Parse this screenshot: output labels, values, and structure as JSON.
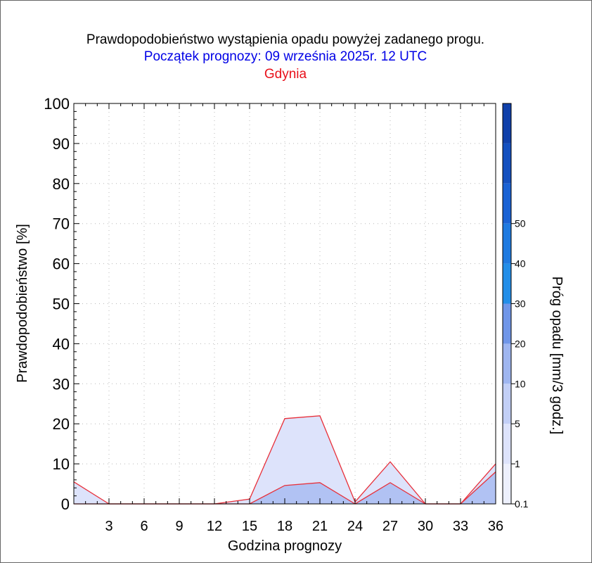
{
  "chart_data": {
    "type": "area",
    "title": "Prawdopodobieństwo wystąpienia opadu powyżej zadanego progu.",
    "subtitle": "Początek prognozy: 09 września 2025r. 12 UTC",
    "location": "Gdynia",
    "xlabel": "Godzina prognozy",
    "ylabel": "Prawdopodobieństwo [%]",
    "colorbar_label": "Próg opadu [mm/3 godz.]",
    "xlim": [
      0,
      36
    ],
    "ylim": [
      0,
      100
    ],
    "x_ticks": [
      3,
      6,
      9,
      12,
      15,
      18,
      21,
      24,
      27,
      30,
      33,
      36
    ],
    "y_ticks": [
      0,
      10,
      20,
      30,
      40,
      50,
      60,
      70,
      80,
      90,
      100
    ],
    "grid": true,
    "x": [
      0,
      3,
      6,
      9,
      12,
      15,
      18,
      21,
      24,
      27,
      30,
      33,
      36
    ],
    "series": [
      {
        "threshold": 0.1,
        "color": "#dde3fb",
        "values": [
          5.5,
          0,
          0,
          0,
          0,
          1.2,
          21.3,
          22,
          0.5,
          10.5,
          0,
          0,
          10
        ]
      },
      {
        "threshold": 1,
        "color": "#b1c2f3",
        "values": [
          0,
          0,
          0,
          0,
          0,
          0,
          4.6,
          5.3,
          0,
          5.3,
          0,
          0,
          8
        ]
      }
    ],
    "colorbar": {
      "tick_labels": [
        "0.1",
        "1",
        "5",
        "10",
        "20",
        "30",
        "40",
        "50"
      ],
      "colors": [
        "#edf0fd",
        "#dde3fb",
        "#c2cff6",
        "#9fb6f0",
        "#7096e8",
        "#238ee8",
        "#1f7ae0",
        "#1a62d4",
        "#1450bf",
        "#1040aa"
      ]
    }
  }
}
